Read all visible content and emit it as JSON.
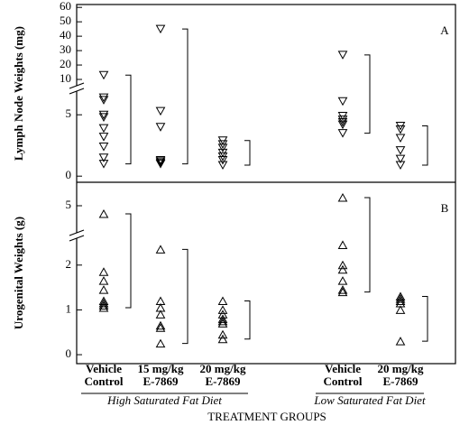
{
  "chart_data": [
    {
      "type": "scatter",
      "panel_label": "A",
      "ylabel": "Lymph Node Weights (mg)",
      "marker": "triangle-down",
      "segments": [
        {
          "ylim": [
            -0.5,
            7
          ],
          "yticks": [
            0,
            5
          ]
        },
        {
          "ylim": [
            5,
            62
          ],
          "yticks": [
            10,
            20,
            30,
            40,
            50,
            60
          ]
        }
      ],
      "groups": [
        [
          13,
          6.4,
          6.2,
          5.0,
          4.8,
          3.9,
          3.2,
          2.4,
          1.5,
          1.0
        ],
        [
          45,
          5.3,
          4.0,
          1.3,
          1.2,
          1.1,
          1.0
        ],
        [
          2.9,
          2.6,
          2.3,
          1.9,
          1.6,
          1.3,
          0.9
        ],
        [
          27,
          6.1,
          4.9,
          4.6,
          4.4,
          4.2,
          3.5
        ],
        [
          4.1,
          3.8,
          3.1,
          2.1,
          1.4,
          0.9
        ]
      ]
    },
    {
      "type": "scatter",
      "panel_label": "B",
      "ylabel": "Urogenital Weights (g)",
      "marker": "triangle-up",
      "segments": [
        {
          "ylim": [
            -0.2,
            2.6
          ],
          "yticks": [
            0,
            1,
            2
          ]
        },
        {
          "ylim": [
            4,
            5.8
          ],
          "yticks": [
            5
          ]
        }
      ],
      "groups": [
        [
          4.7,
          1.85,
          1.65,
          1.45,
          1.2,
          1.15,
          1.1,
          1.05
        ],
        [
          2.35,
          1.2,
          1.05,
          0.9,
          0.65,
          0.6,
          0.25
        ],
        [
          1.2,
          1.0,
          0.9,
          0.8,
          0.75,
          0.7,
          0.45,
          0.35
        ],
        [
          5.3,
          2.45,
          2.0,
          1.9,
          1.65,
          1.45,
          1.4
        ],
        [
          1.3,
          1.25,
          1.2,
          1.15,
          1.0,
          0.3
        ]
      ],
      "categories": [
        "Vehicle Control",
        "15 mg/kg E-7869",
        "20 mg/kg E-7869",
        "Vehicle Control",
        "20 mg/kg E-7869"
      ],
      "diets": [
        "High Saturated Fat Diet",
        "Low Saturated Fat Diet"
      ],
      "xlabel": "TREATMENT GROUPS"
    }
  ]
}
